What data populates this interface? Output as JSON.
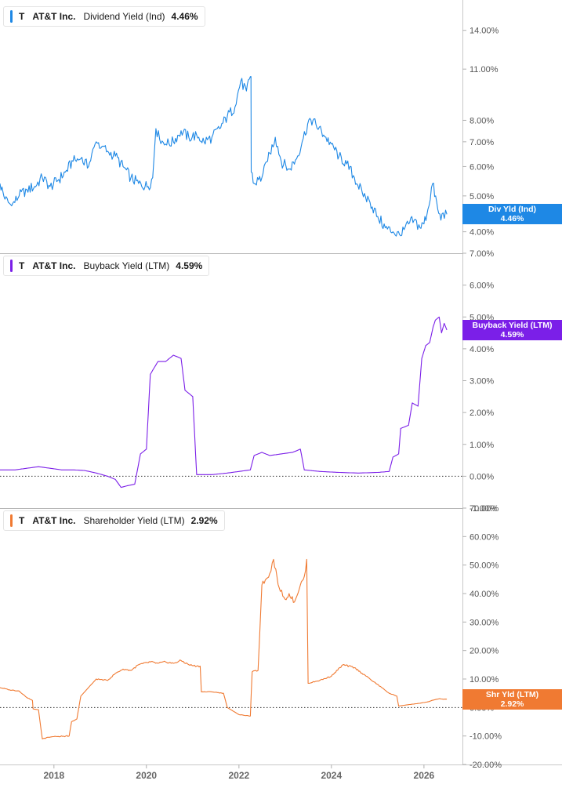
{
  "chart_data": [
    {
      "type": "line",
      "legend": {
        "ticker": "T",
        "company": "AT&T Inc.",
        "metric": "Dividend Yield (Ind)",
        "value": "4.46%"
      },
      "axis_tag": {
        "label": "Div Yld (Ind)",
        "value": "4.46%"
      },
      "color": "#1e88e5",
      "scale": "log",
      "ylim": [
        3.5,
        16.5
      ],
      "ticks": [
        {
          "v": 4,
          "label": "4.00%"
        },
        {
          "v": 5,
          "label": "5.00%"
        },
        {
          "v": 6,
          "label": "6.00%"
        },
        {
          "v": 7,
          "label": "7.00%"
        },
        {
          "v": 8,
          "label": "8.00%"
        },
        {
          "v": 11,
          "label": "11.00%"
        },
        {
          "v": 14,
          "label": "14.00%"
        }
      ],
      "series": [
        {
          "values": [
            [
              "2016-11-01",
              5.4
            ],
            [
              "2016-12-10",
              4.9
            ],
            [
              "2017-02-01",
              4.7
            ],
            [
              "2017-04-01",
              5.0
            ],
            [
              "2017-06-01",
              5.2
            ],
            [
              "2017-08-01",
              5.3
            ],
            [
              "2017-10-01",
              5.6
            ],
            [
              "2017-12-01",
              5.3
            ],
            [
              "2018-02-01",
              5.5
            ],
            [
              "2018-04-01",
              5.8
            ],
            [
              "2018-06-01",
              6.2
            ],
            [
              "2018-08-01",
              6.3
            ],
            [
              "2018-10-01",
              6.0
            ],
            [
              "2018-12-01",
              7.0
            ],
            [
              "2019-01-15",
              6.8
            ],
            [
              "2019-03-01",
              6.6
            ],
            [
              "2019-05-01",
              6.4
            ],
            [
              "2019-07-01",
              6.0
            ],
            [
              "2019-09-01",
              5.6
            ],
            [
              "2019-11-01",
              5.4
            ],
            [
              "2020-01-15",
              5.3
            ],
            [
              "2020-02-20",
              5.6
            ],
            [
              "2020-03-16",
              7.6
            ],
            [
              "2020-04-15",
              7.1
            ],
            [
              "2020-06-01",
              6.9
            ],
            [
              "2020-08-01",
              7.0
            ],
            [
              "2020-10-01",
              7.5
            ],
            [
              "2020-12-01",
              7.2
            ],
            [
              "2021-02-01",
              7.3
            ],
            [
              "2021-04-01",
              7.0
            ],
            [
              "2021-06-01",
              7.2
            ],
            [
              "2021-08-01",
              7.6
            ],
            [
              "2021-10-01",
              8.2
            ],
            [
              "2021-12-01",
              8.7
            ],
            [
              "2022-01-15",
              10.2
            ],
            [
              "2022-03-01",
              9.6
            ],
            [
              "2022-04-01",
              10.5
            ],
            [
              "2022-04-06",
              10.5
            ],
            [
              "2022-04-08",
              5.8
            ],
            [
              "2022-05-01",
              5.4
            ],
            [
              "2022-07-01",
              5.6
            ],
            [
              "2022-08-15",
              6.2
            ],
            [
              "2022-10-15",
              7.2
            ],
            [
              "2022-12-01",
              6.2
            ],
            [
              "2023-02-01",
              5.9
            ],
            [
              "2023-04-01",
              6.3
            ],
            [
              "2023-05-15",
              7.0
            ],
            [
              "2023-07-15",
              8.1
            ],
            [
              "2023-09-01",
              7.8
            ],
            [
              "2023-11-01",
              7.3
            ],
            [
              "2024-01-01",
              6.9
            ],
            [
              "2024-03-01",
              6.4
            ],
            [
              "2024-05-01",
              6.1
            ],
            [
              "2024-07-01",
              5.6
            ],
            [
              "2024-09-01",
              5.1
            ],
            [
              "2024-11-01",
              4.8
            ],
            [
              "2025-01-01",
              4.4
            ],
            [
              "2025-03-01",
              4.1
            ],
            [
              "2025-05-01",
              4.0
            ],
            [
              "2025-07-01",
              3.9
            ],
            [
              "2025-09-01",
              4.2
            ],
            [
              "2025-10-15",
              4.3
            ],
            [
              "2025-12-01",
              4.1
            ],
            [
              "2026-01-01",
              4.2
            ],
            [
              "2026-02-01",
              4.6
            ],
            [
              "2026-03-10",
              5.4
            ],
            [
              "2026-04-20",
              4.6
            ],
            [
              "2026-05-15",
              4.3
            ],
            [
              "2026-06-01",
              4.5
            ],
            [
              "2026-07-01",
              4.46
            ]
          ]
        }
      ]
    },
    {
      "type": "line",
      "legend": {
        "ticker": "T",
        "company": "AT&T Inc.",
        "metric": "Buyback Yield (LTM)",
        "value": "4.59%"
      },
      "axis_tag": {
        "label": "Buyback Yield (LTM)",
        "value": "4.59%"
      },
      "color": "#7b1fe8",
      "scale": "linear",
      "ylim": [
        -1.0,
        7.0
      ],
      "ticks": [
        {
          "v": -1,
          "label": "-1.00%"
        },
        {
          "v": 0,
          "label": "0.00%"
        },
        {
          "v": 1,
          "label": "1.00%"
        },
        {
          "v": 2,
          "label": "2.00%"
        },
        {
          "v": 3,
          "label": "3.00%"
        },
        {
          "v": 4,
          "label": "4.00%"
        },
        {
          "v": 5,
          "label": "5.00%"
        },
        {
          "v": 6,
          "label": "6.00%"
        },
        {
          "v": 7,
          "label": "7.00%"
        }
      ],
      "series": [
        {
          "values": [
            [
              "2016-11-01",
              0.2
            ],
            [
              "2017-03-01",
              0.2
            ],
            [
              "2017-06-01",
              0.25
            ],
            [
              "2017-09-01",
              0.3
            ],
            [
              "2017-12-01",
              0.25
            ],
            [
              "2018-03-01",
              0.2
            ],
            [
              "2018-06-01",
              0.2
            ],
            [
              "2018-09-01",
              0.18
            ],
            [
              "2018-12-01",
              0.1
            ],
            [
              "2019-03-01",
              0.0
            ],
            [
              "2019-05-01",
              -0.1
            ],
            [
              "2019-06-15",
              -0.35
            ],
            [
              "2019-08-01",
              -0.3
            ],
            [
              "2019-10-01",
              -0.25
            ],
            [
              "2019-11-15",
              0.7
            ],
            [
              "2020-01-01",
              0.85
            ],
            [
              "2020-02-01",
              3.2
            ],
            [
              "2020-04-01",
              3.6
            ],
            [
              "2020-06-01",
              3.6
            ],
            [
              "2020-08-01",
              3.8
            ],
            [
              "2020-10-01",
              3.7
            ],
            [
              "2020-11-01",
              2.7
            ],
            [
              "2021-01-01",
              2.5
            ],
            [
              "2021-02-01",
              0.05
            ],
            [
              "2021-06-01",
              0.05
            ],
            [
              "2021-10-01",
              0.1
            ],
            [
              "2022-01-01",
              0.15
            ],
            [
              "2022-04-01",
              0.2
            ],
            [
              "2022-05-01",
              0.65
            ],
            [
              "2022-07-01",
              0.75
            ],
            [
              "2022-09-01",
              0.65
            ],
            [
              "2022-12-01",
              0.7
            ],
            [
              "2023-03-01",
              0.75
            ],
            [
              "2023-05-01",
              0.85
            ],
            [
              "2023-06-01",
              0.2
            ],
            [
              "2023-10-01",
              0.15
            ],
            [
              "2024-03-01",
              0.12
            ],
            [
              "2024-08-01",
              0.1
            ],
            [
              "2025-01-01",
              0.12
            ],
            [
              "2025-04-01",
              0.15
            ],
            [
              "2025-05-01",
              0.6
            ],
            [
              "2025-06-15",
              0.7
            ],
            [
              "2025-07-01",
              1.5
            ],
            [
              "2025-09-01",
              1.6
            ],
            [
              "2025-10-01",
              2.3
            ],
            [
              "2025-11-15",
              2.2
            ],
            [
              "2025-12-15",
              3.7
            ],
            [
              "2026-01-15",
              4.1
            ],
            [
              "2026-02-15",
              4.2
            ],
            [
              "2026-03-15",
              4.7
            ],
            [
              "2026-04-01",
              4.9
            ],
            [
              "2026-05-01",
              5.0
            ],
            [
              "2026-05-20",
              4.5
            ],
            [
              "2026-06-10",
              4.8
            ],
            [
              "2026-07-01",
              4.59
            ]
          ]
        }
      ]
    },
    {
      "type": "line",
      "legend": {
        "ticker": "T",
        "company": "AT&T Inc.",
        "metric": "Shareholder Yield (LTM)",
        "value": "2.92%"
      },
      "axis_tag": {
        "label": "Shr Yld (LTM)",
        "value": "2.92%"
      },
      "color": "#f07a32",
      "scale": "linear",
      "ylim": [
        -20,
        70
      ],
      "ticks": [
        {
          "v": -20,
          "label": "-20.00%"
        },
        {
          "v": -10,
          "label": "-10.00%"
        },
        {
          "v": 0,
          "label": "0.00%"
        },
        {
          "v": 10,
          "label": "10.00%"
        },
        {
          "v": 20,
          "label": "20.00%"
        },
        {
          "v": 30,
          "label": "30.00%"
        },
        {
          "v": 40,
          "label": "40.00%"
        },
        {
          "v": 50,
          "label": "50.00%"
        },
        {
          "v": 60,
          "label": "60.00%"
        },
        {
          "v": 70,
          "label": "70.00%"
        }
      ],
      "series": [
        {
          "values": [
            [
              "2016-11-01",
              7.0
            ],
            [
              "2017-01-15",
              6.2
            ],
            [
              "2017-04-01",
              5.8
            ],
            [
              "2017-06-01",
              3.5
            ],
            [
              "2017-07-15",
              2.5
            ],
            [
              "2017-07-20",
              -0.5
            ],
            [
              "2017-09-01",
              -0.8
            ],
            [
              "2017-10-01",
              -11.0
            ],
            [
              "2018-01-01",
              -10.2
            ],
            [
              "2018-05-01",
              -10.0
            ],
            [
              "2018-05-20",
              -5.0
            ],
            [
              "2018-07-01",
              -4.0
            ],
            [
              "2018-08-01",
              4.0
            ],
            [
              "2018-10-01",
              7.0
            ],
            [
              "2018-12-01",
              10.0
            ],
            [
              "2019-03-01",
              9.5
            ],
            [
              "2019-05-01",
              12.0
            ],
            [
              "2019-07-01",
              13.5
            ],
            [
              "2019-09-01",
              13.0
            ],
            [
              "2019-11-01",
              15.0
            ],
            [
              "2020-02-01",
              16.0
            ],
            [
              "2020-04-01",
              15.5
            ],
            [
              "2020-06-01",
              16.0
            ],
            [
              "2020-08-01",
              15.5
            ],
            [
              "2020-10-01",
              16.5
            ],
            [
              "2020-12-01",
              15.0
            ],
            [
              "2021-02-01",
              14.5
            ],
            [
              "2021-03-01",
              14.5
            ],
            [
              "2021-03-10",
              5.5
            ],
            [
              "2021-06-01",
              5.5
            ],
            [
              "2021-09-01",
              5.0
            ],
            [
              "2021-10-01",
              0.0
            ],
            [
              "2022-01-01",
              -2.5
            ],
            [
              "2022-04-01",
              -3.0
            ],
            [
              "2022-04-15",
              12.5
            ],
            [
              "2022-06-01",
              13.0
            ],
            [
              "2022-07-01",
              43.0
            ],
            [
              "2022-09-01",
              47.0
            ],
            [
              "2022-10-01",
              52.0
            ],
            [
              "2022-11-15",
              42.0
            ],
            [
              "2023-01-01",
              38.0
            ],
            [
              "2023-02-01",
              40.0
            ],
            [
              "2023-03-15",
              37.0
            ],
            [
              "2023-05-01",
              43.0
            ],
            [
              "2023-06-01",
              46.0
            ],
            [
              "2023-06-20",
              52.0
            ],
            [
              "2023-07-01",
              8.5
            ],
            [
              "2023-10-01",
              9.5
            ],
            [
              "2024-01-01",
              11.0
            ],
            [
              "2024-04-01",
              15.0
            ],
            [
              "2024-07-01",
              14.0
            ],
            [
              "2024-10-01",
              11.0
            ],
            [
              "2024-12-01",
              9.0
            ],
            [
              "2025-02-01",
              7.0
            ],
            [
              "2025-04-01",
              5.0
            ],
            [
              "2025-06-01",
              4.0
            ],
            [
              "2025-06-15",
              0.5
            ],
            [
              "2025-09-01",
              1.0
            ],
            [
              "2025-12-01",
              1.5
            ],
            [
              "2026-02-01",
              2.0
            ],
            [
              "2026-04-01",
              2.8
            ],
            [
              "2026-05-01",
              3.1
            ],
            [
              "2026-06-01",
              2.9
            ],
            [
              "2026-07-01",
              2.92
            ]
          ]
        }
      ]
    }
  ],
  "x_axis": {
    "type": "date",
    "range": [
      "2016-11-01",
      "2026-11-01"
    ],
    "ticks": [
      {
        "date": "2018-01-01",
        "label": "2018"
      },
      {
        "date": "2020-01-01",
        "label": "2020"
      },
      {
        "date": "2022-01-01",
        "label": "2022"
      },
      {
        "date": "2024-01-01",
        "label": "2024"
      },
      {
        "date": "2026-01-01",
        "label": "2026"
      }
    ]
  }
}
